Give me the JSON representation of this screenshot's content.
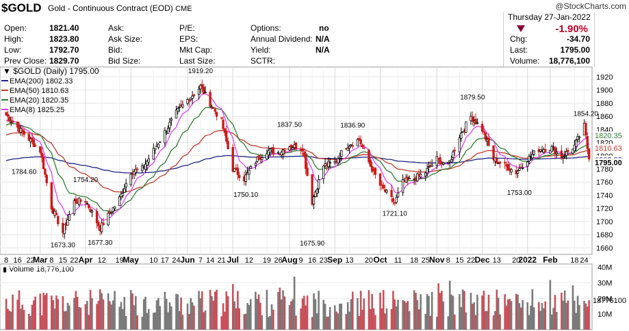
{
  "header": {
    "symbol": "$GOLD",
    "description": "Gold - Continuous Contract (EOD)",
    "exchange": "CME",
    "brand": "@StockCharts.com",
    "date": "Thursday 27-Jan-2022",
    "change_pct": "-1.90%",
    "fields": [
      {
        "label": "Open:",
        "value": "1821.40"
      },
      {
        "label": "High:",
        "value": "1823.80"
      },
      {
        "label": "Low:",
        "value": "1792.70"
      },
      {
        "label": "Prev Close:",
        "value": "1829.70"
      },
      {
        "label": "Ask:",
        "value": ""
      },
      {
        "label": "Ask Size:",
        "value": ""
      },
      {
        "label": "Bid:",
        "value": ""
      },
      {
        "label": "Bid Size:",
        "value": ""
      },
      {
        "label": "P/E:",
        "value": ""
      },
      {
        "label": "EPS:",
        "value": ""
      },
      {
        "label": "Mkt Cap:",
        "value": ""
      },
      {
        "label": "Last Size:",
        "value": ""
      },
      {
        "label": "Options:",
        "value": "no"
      },
      {
        "label": "Annual Dividend:",
        "value": "N/A"
      },
      {
        "label": "Yield:",
        "value": "N/A"
      },
      {
        "label": "SCTR:",
        "value": ""
      }
    ],
    "quote": [
      {
        "label": "Chg:",
        "value": "-34.70"
      },
      {
        "label": "Last:",
        "value": "1795.00"
      },
      {
        "label": "Volume:",
        "value": "18,776,100"
      }
    ]
  },
  "colors": {
    "up_candle": "#000000",
    "down_candle": "#cc1a1a",
    "ema200": "#1a237e",
    "ema50": "#c0392b",
    "ema20": "#2e7d32",
    "ema8": "#e040fb",
    "vol_up": "#7a7a7a",
    "vol_down": "#c8505a",
    "last_tag": "#d32f2f"
  },
  "chart_data": [
    {
      "type": "line",
      "title": "$GOLD (Daily) 1795.00",
      "legend": [
        {
          "name": "EMA(200) 1802.33",
          "color": "#1a237e"
        },
        {
          "name": "EMA(50) 1810.63",
          "color": "#c0392b"
        },
        {
          "name": "EMA(20) 1820.35",
          "color": "#2e7d32"
        },
        {
          "name": "EMA(8) 1825.25",
          "color": "#e040fb"
        }
      ],
      "legend_position": "top-left",
      "ylim": [
        1650,
        1935
      ],
      "y_ticks": [
        1660,
        1680,
        1700,
        1720,
        1740,
        1760,
        1780,
        1800,
        1820,
        1840,
        1860,
        1880,
        1900,
        1920
      ],
      "x_tick_labels": [
        "Feb",
        "8",
        "16",
        "22",
        "Mar",
        "8",
        "15",
        "22",
        "Apr",
        "12",
        "19",
        "May",
        "10",
        "17",
        "24",
        "Jun",
        "7",
        "14",
        "21",
        "Jul",
        "12",
        "19",
        "26",
        "Aug",
        "9",
        "16",
        "23",
        "Sep",
        "13",
        "20",
        "Oct",
        "11",
        "18",
        "25",
        "Nov",
        "8",
        "15",
        "22",
        "Dec",
        "13",
        "20",
        "2022",
        "18",
        "24"
      ],
      "annotations": [
        "1784.60",
        "1673.30",
        "1754.20",
        "1677.30",
        "1919.20",
        "1750.10",
        "1837.50",
        "1675.90",
        "1836.90",
        "1721.10",
        "1879.50",
        "1753.00",
        "1854.20"
      ],
      "right_labels": [
        "1820.35",
        "1810.63",
        "1802.33",
        "1795.00"
      ],
      "close_anchors": [
        {
          "x": "2021-02-01",
          "y": 1862
        },
        {
          "x": "2021-02-10",
          "y": 1838
        },
        {
          "x": "2021-02-22",
          "y": 1808
        },
        {
          "x": "2021-03-01",
          "y": 1722
        },
        {
          "x": "2021-03-08",
          "y": 1684
        },
        {
          "x": "2021-03-15",
          "y": 1730
        },
        {
          "x": "2021-03-22",
          "y": 1732
        },
        {
          "x": "2021-03-31",
          "y": 1690
        },
        {
          "x": "2021-04-12",
          "y": 1735
        },
        {
          "x": "2021-04-19",
          "y": 1776
        },
        {
          "x": "2021-04-26",
          "y": 1780
        },
        {
          "x": "2021-05-10",
          "y": 1836
        },
        {
          "x": "2021-05-17",
          "y": 1865
        },
        {
          "x": "2021-05-24",
          "y": 1885
        },
        {
          "x": "2021-06-01",
          "y": 1905
        },
        {
          "x": "2021-06-07",
          "y": 1880
        },
        {
          "x": "2021-06-14",
          "y": 1852
        },
        {
          "x": "2021-06-21",
          "y": 1780
        },
        {
          "x": "2021-06-28",
          "y": 1765
        },
        {
          "x": "2021-07-06",
          "y": 1795
        },
        {
          "x": "2021-07-12",
          "y": 1808
        },
        {
          "x": "2021-07-19",
          "y": 1805
        },
        {
          "x": "2021-07-26",
          "y": 1815
        },
        {
          "x": "2021-08-03",
          "y": 1812
        },
        {
          "x": "2021-08-09",
          "y": 1730
        },
        {
          "x": "2021-08-16",
          "y": 1785
        },
        {
          "x": "2021-08-23",
          "y": 1790
        },
        {
          "x": "2021-08-30",
          "y": 1815
        },
        {
          "x": "2021-09-07",
          "y": 1825
        },
        {
          "x": "2021-09-13",
          "y": 1790
        },
        {
          "x": "2021-09-20",
          "y": 1755
        },
        {
          "x": "2021-09-29",
          "y": 1728
        },
        {
          "x": "2021-10-04",
          "y": 1760
        },
        {
          "x": "2021-10-11",
          "y": 1765
        },
        {
          "x": "2021-10-18",
          "y": 1775
        },
        {
          "x": "2021-10-25",
          "y": 1795
        },
        {
          "x": "2021-11-01",
          "y": 1785
        },
        {
          "x": "2021-11-08",
          "y": 1830
        },
        {
          "x": "2021-11-15",
          "y": 1860
        },
        {
          "x": "2021-11-22",
          "y": 1840
        },
        {
          "x": "2021-11-29",
          "y": 1795
        },
        {
          "x": "2021-12-06",
          "y": 1785
        },
        {
          "x": "2021-12-13",
          "y": 1775
        },
        {
          "x": "2021-12-20",
          "y": 1795
        },
        {
          "x": "2021-12-27",
          "y": 1810
        },
        {
          "x": "2022-01-04",
          "y": 1812
        },
        {
          "x": "2022-01-10",
          "y": 1798
        },
        {
          "x": "2022-01-18",
          "y": 1815
        },
        {
          "x": "2022-01-24",
          "y": 1845
        },
        {
          "x": "2022-01-27",
          "y": 1795
        }
      ]
    },
    {
      "type": "bar",
      "title": "Volume 18,776,100",
      "ylim": [
        0,
        42000000
      ],
      "y_tick_labels": [
        "40M",
        "30M",
        "20M",
        "10M"
      ],
      "y_tick_values": [
        40000000,
        30000000,
        20000000,
        10000000
      ],
      "last_value_label": "18776100",
      "last_value": 18776100
    }
  ]
}
